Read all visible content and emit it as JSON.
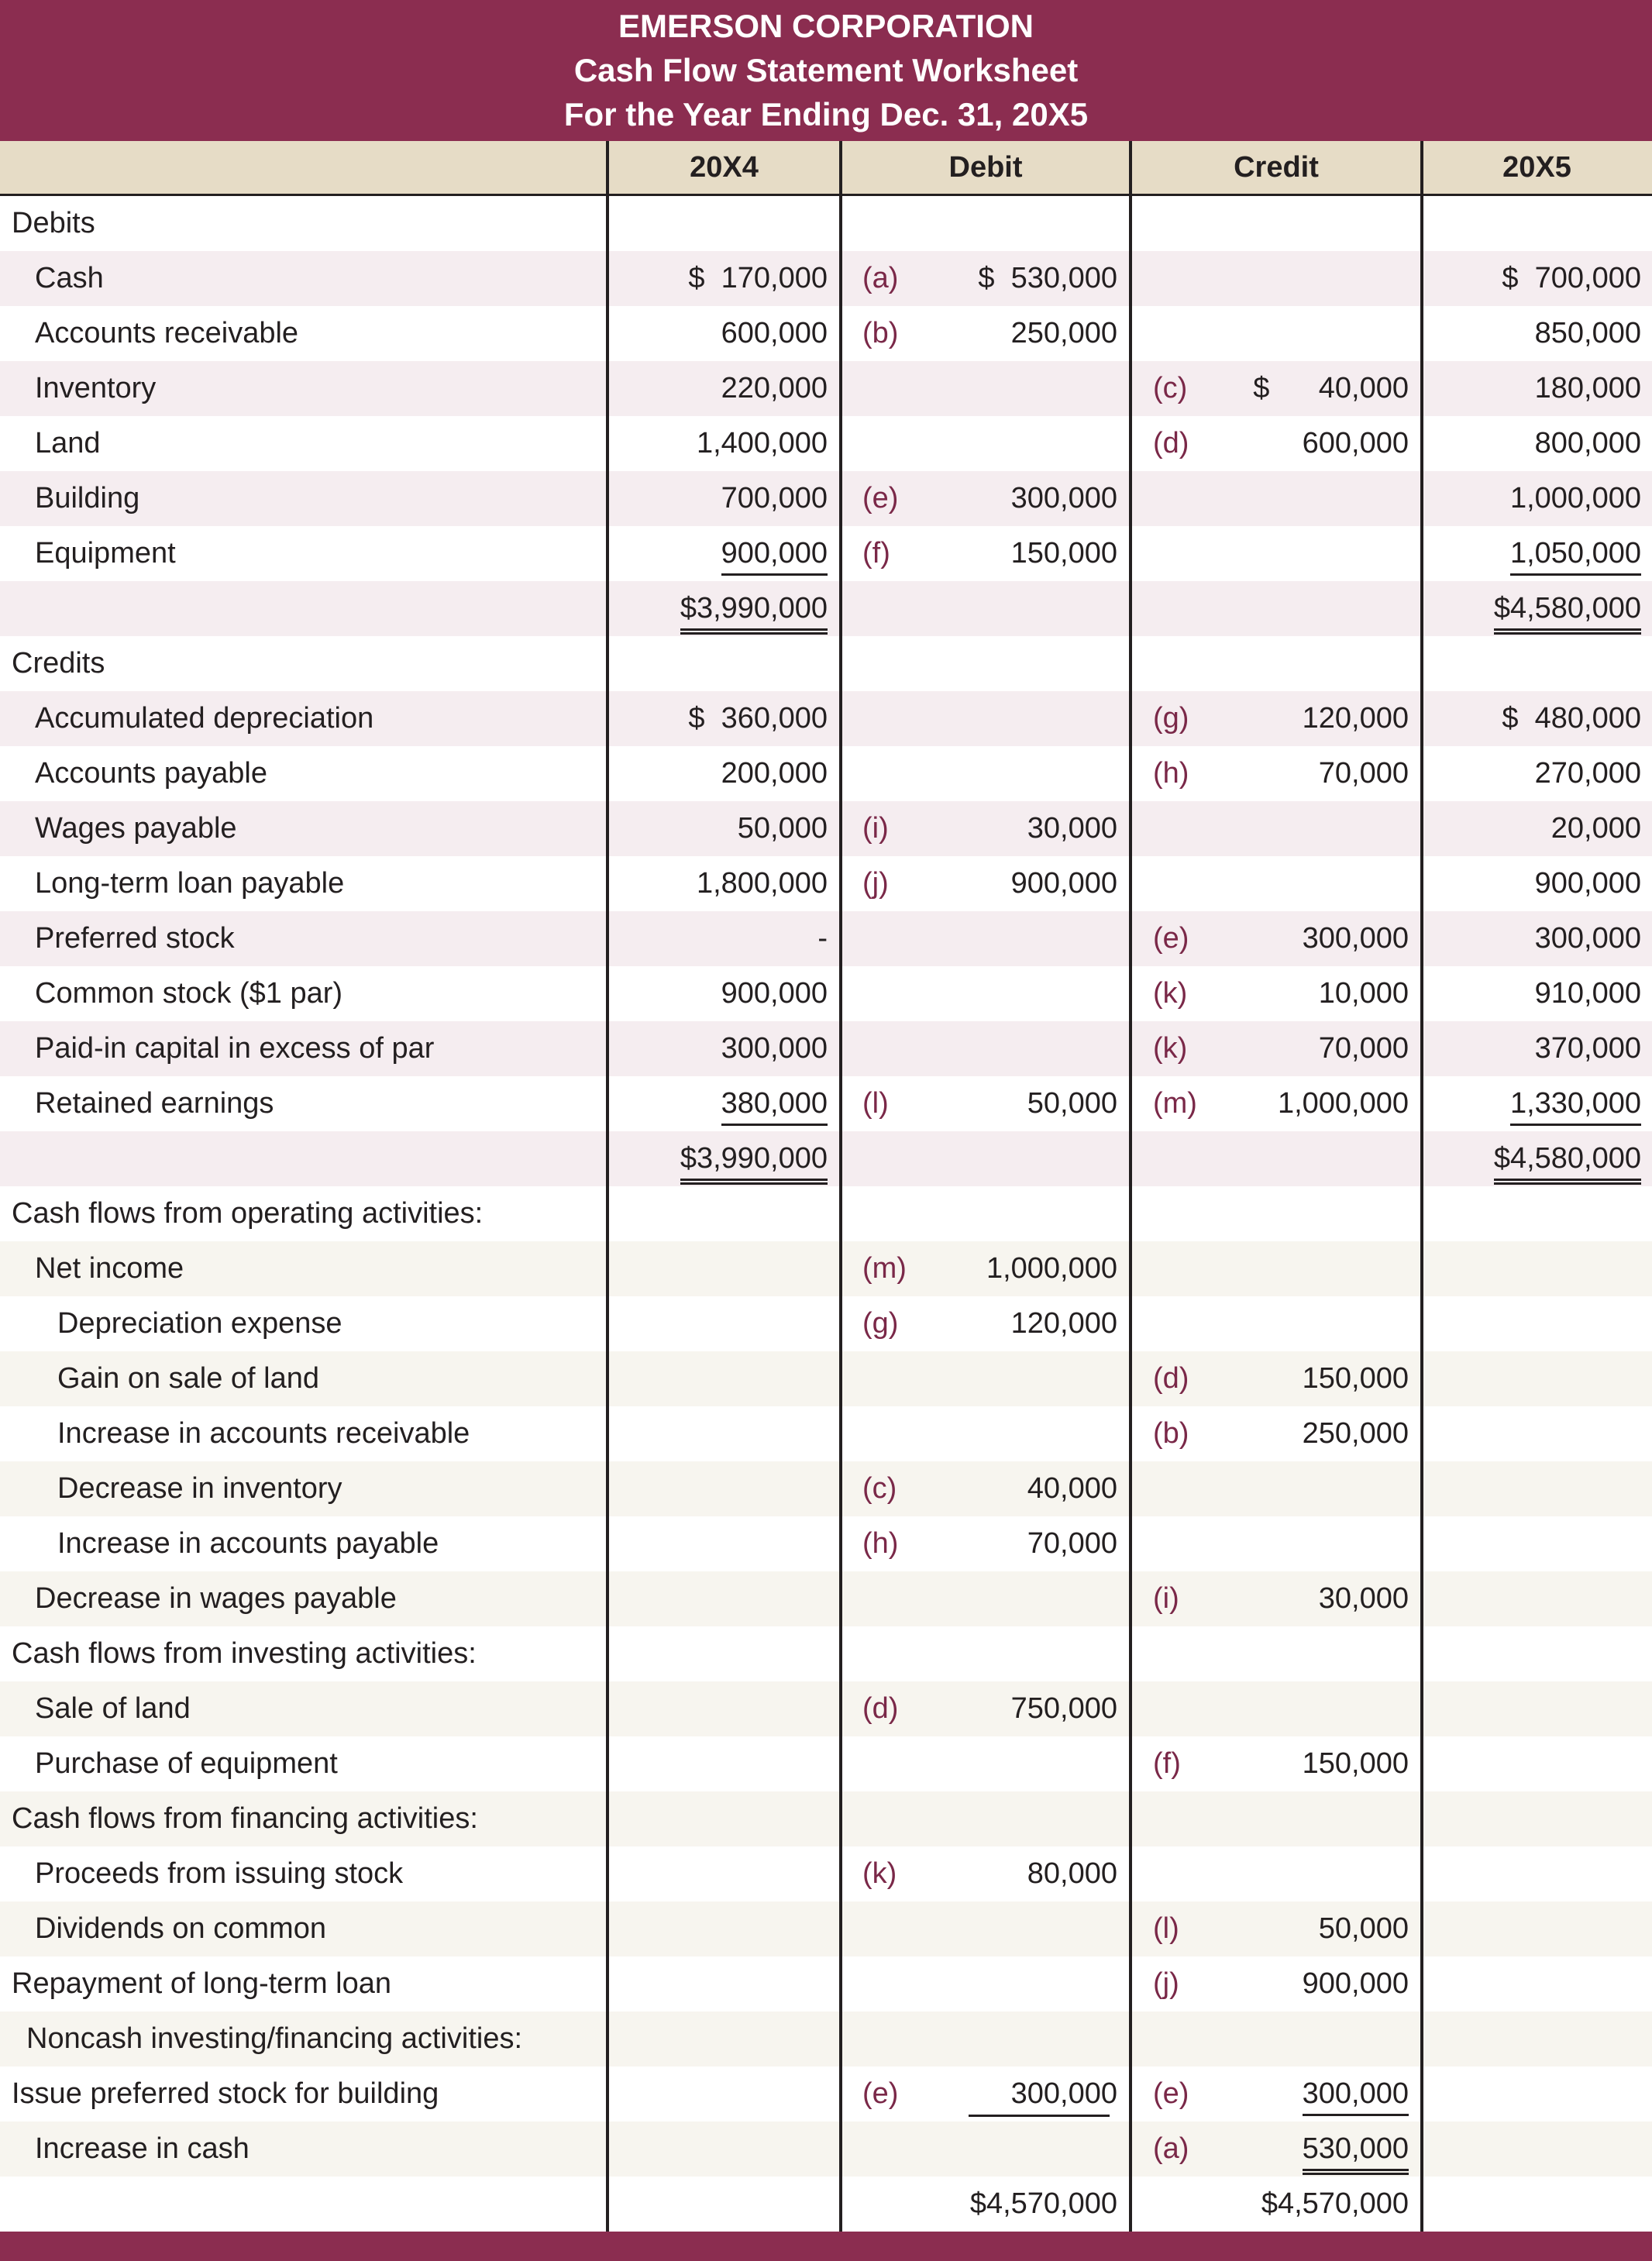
{
  "header": {
    "company": "EMERSON CORPORATION",
    "title": "Cash Flow Statement Worksheet",
    "period": "For the Year Ending Dec. 31, 20X5"
  },
  "columns": [
    "20X4",
    "Debit",
    "Credit",
    "20X5"
  ],
  "rows": [
    [
      "Debits",
      null,
      null,
      null,
      null,
      null,
      null
    ],
    [
      "Cash",
      "$  170,000",
      "(a)",
      "$  530,000",
      null,
      null,
      "$  700,000"
    ],
    [
      "Accounts receivable",
      "600,000",
      "(b)",
      "250,000",
      null,
      null,
      "850,000"
    ],
    [
      "Inventory",
      "220,000",
      null,
      null,
      "(c)",
      "$      40,000",
      "180,000"
    ],
    [
      "Land",
      "1,400,000",
      null,
      null,
      "(d)",
      "600,000",
      "800,000"
    ],
    [
      "Building",
      "700,000",
      "(e)",
      "300,000",
      null,
      null,
      "1,000,000"
    ],
    [
      "Equipment",
      "900,000",
      "(f)",
      "150,000",
      null,
      null,
      "1,050,000"
    ],
    [
      null,
      "$3,990,000",
      null,
      null,
      null,
      null,
      "$4,580,000"
    ],
    [
      "Credits",
      null,
      null,
      null,
      null,
      null,
      null
    ],
    [
      "Accumulated depreciation",
      "$  360,000",
      null,
      null,
      "(g)",
      "120,000",
      "$  480,000"
    ],
    [
      "Accounts payable",
      "200,000",
      null,
      null,
      "(h)",
      "70,000",
      "270,000"
    ],
    [
      "Wages payable",
      "50,000",
      "(i)",
      "30,000",
      null,
      null,
      "20,000"
    ],
    [
      "Long-term loan payable",
      "1,800,000",
      "(j)",
      "900,000",
      null,
      null,
      "900,000"
    ],
    [
      "Preferred stock",
      "-",
      null,
      null,
      "(e)",
      "300,000",
      "300,000"
    ],
    [
      "Common stock ($1 par)",
      "900,000",
      null,
      null,
      "(k)",
      "10,000",
      "910,000"
    ],
    [
      "Paid-in capital in excess of par",
      "300,000",
      null,
      null,
      "(k)",
      "70,000",
      "370,000"
    ],
    [
      "Retained earnings",
      "380,000",
      "(l)",
      "50,000",
      "(m)",
      "1,000,000",
      "1,330,000"
    ],
    [
      null,
      "$3,990,000",
      null,
      null,
      null,
      null,
      "$4,580,000"
    ],
    [
      "Cash flows from operating activities:",
      null,
      null,
      null,
      null,
      null,
      null
    ],
    [
      "Net income",
      null,
      "(m)",
      "1,000,000",
      null,
      null,
      null
    ],
    [
      "Depreciation expense",
      null,
      "(g)",
      "120,000",
      null,
      null,
      null
    ],
    [
      "Gain on sale of land",
      null,
      null,
      null,
      "(d)",
      "150,000",
      null
    ],
    [
      "Increase in accounts receivable",
      null,
      null,
      null,
      "(b)",
      "250,000",
      null
    ],
    [
      "Decrease in inventory",
      null,
      "(c)",
      "40,000",
      null,
      null,
      null
    ],
    [
      "Increase in accounts payable",
      null,
      "(h)",
      "70,000",
      null,
      null,
      null
    ],
    [
      "Decrease in wages payable",
      null,
      null,
      null,
      "(i)",
      "30,000",
      null
    ],
    [
      "Cash flows from investing activities:",
      null,
      null,
      null,
      null,
      null,
      null
    ],
    [
      "Sale of land",
      null,
      "(d)",
      "750,000",
      null,
      null,
      null
    ],
    [
      "Purchase of equipment",
      null,
      null,
      null,
      "(f)",
      "150,000",
      null
    ],
    [
      "Cash flows from financing activities:",
      null,
      null,
      null,
      null,
      null,
      null
    ],
    [
      "Proceeds from issuing stock",
      null,
      "(k)",
      "80,000",
      null,
      null,
      null
    ],
    [
      "Dividends on common",
      null,
      null,
      null,
      "(l)",
      "50,000",
      null
    ],
    [
      "Repayment of long-term loan",
      null,
      null,
      null,
      "(j)",
      "900,000",
      null
    ],
    [
      "Noncash investing/financing activities:",
      null,
      null,
      null,
      null,
      null,
      null
    ],
    [
      "Issue preferred stock for building",
      null,
      "(e)",
      "300,000",
      "(e)",
      "300,000",
      null
    ],
    [
      "Increase in cash",
      null,
      null,
      null,
      "(a)",
      "530,000",
      null
    ],
    [
      null,
      null,
      null,
      "$4,570,000",
      null,
      "$4,570,000",
      null
    ]
  ]
}
